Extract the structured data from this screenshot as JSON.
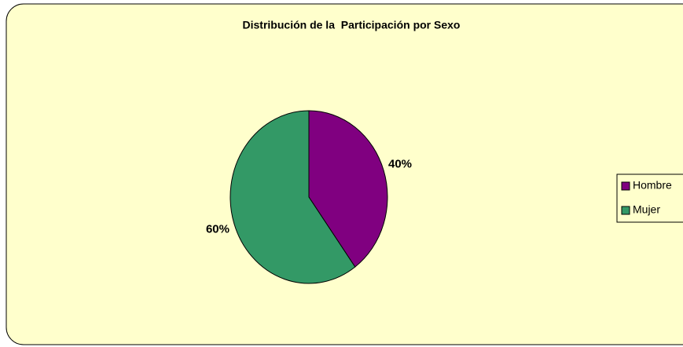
{
  "chart_data": {
    "type": "pie",
    "title": "Distribución de la  Participación por Sexo",
    "categories": [
      "Hombre",
      "Mujer"
    ],
    "values": [
      40,
      60
    ],
    "value_labels": [
      "40%",
      "60%"
    ],
    "colors": [
      "#800080",
      "#339966"
    ],
    "legend": "right"
  }
}
